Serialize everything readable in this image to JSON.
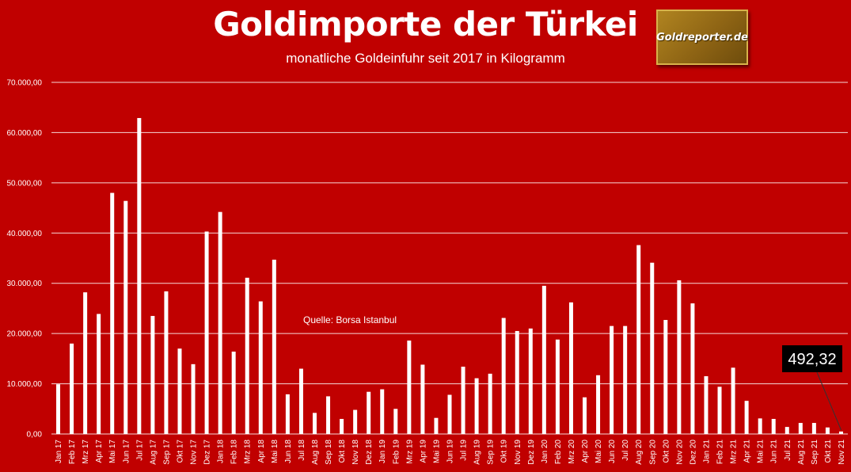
{
  "chart_data": {
    "type": "bar",
    "title": "Goldimporte der Türkei",
    "subtitle": "monatliche Goldeinfuhr seit 2017 in Kilogramm",
    "source_note": "Quelle: Borsa Istanbul",
    "logo_text": "Goldreporter.de",
    "callout": {
      "category": "Nov 21",
      "text": "492,32"
    },
    "ylim": [
      0,
      70000
    ],
    "yticks": [
      0,
      10000,
      20000,
      30000,
      40000,
      50000,
      60000,
      70000
    ],
    "ytick_labels": [
      "0,00",
      "10.000,00",
      "20.000,00",
      "30.000,00",
      "40.000,00",
      "50.000,00",
      "60.000,00",
      "70.000,00"
    ],
    "grid": true,
    "colors": {
      "background": "#c00000",
      "bars": "#ffffff",
      "grid": "#ffffff",
      "callout_bg": "#000000"
    },
    "categories": [
      "Jan 17",
      "Feb 17",
      "Mrz 17",
      "Apr 17",
      "Mai 17",
      "Jun 17",
      "Jul 17",
      "Aug 17",
      "Sep 17",
      "Okt 17",
      "Nov 17",
      "Dez 17",
      "Jan 18",
      "Feb 18",
      "Mrz 18",
      "Apr 18",
      "Mai 18",
      "Jun 18",
      "Jul 18",
      "Aug 18",
      "Sep 18",
      "Okt 18",
      "Nov 18",
      "Dez 18",
      "Jan 19",
      "Feb 19",
      "Mrz 19",
      "Apr 19",
      "Mai 19",
      "Jun 19",
      "Jul 19",
      "Aug 19",
      "Sep 19",
      "Okt 19",
      "Nov 19",
      "Dez 19",
      "Jan 20",
      "Feb 20",
      "Mrz 20",
      "Apr 20",
      "Mai 20",
      "Jun 20",
      "Jul 20",
      "Aug 20",
      "Sep 20",
      "Okt 20",
      "Nov 20",
      "Dez 20",
      "Jan 21",
      "Feb 21",
      "Mrz 21",
      "Apr 21",
      "Mai 21",
      "Jun 21",
      "Jul 21",
      "Aug 21",
      "Sep 21",
      "Okt 21",
      "Nov 21"
    ],
    "values": [
      9900,
      18000,
      28200,
      23900,
      48000,
      46400,
      62900,
      23500,
      28400,
      17000,
      13900,
      40300,
      44200,
      16400,
      31100,
      26400,
      34700,
      7900,
      13000,
      4200,
      7500,
      3000,
      4800,
      8400,
      8900,
      5000,
      18600,
      13800,
      3200,
      7800,
      13400,
      11100,
      12000,
      23100,
      20500,
      21000,
      29500,
      18800,
      26200,
      7300,
      11700,
      21500,
      21500,
      37600,
      34100,
      22700,
      30600,
      26000,
      11500,
      9400,
      13200,
      6600,
      3100,
      3000,
      1400,
      2200,
      2200,
      1300,
      492.32
    ]
  }
}
